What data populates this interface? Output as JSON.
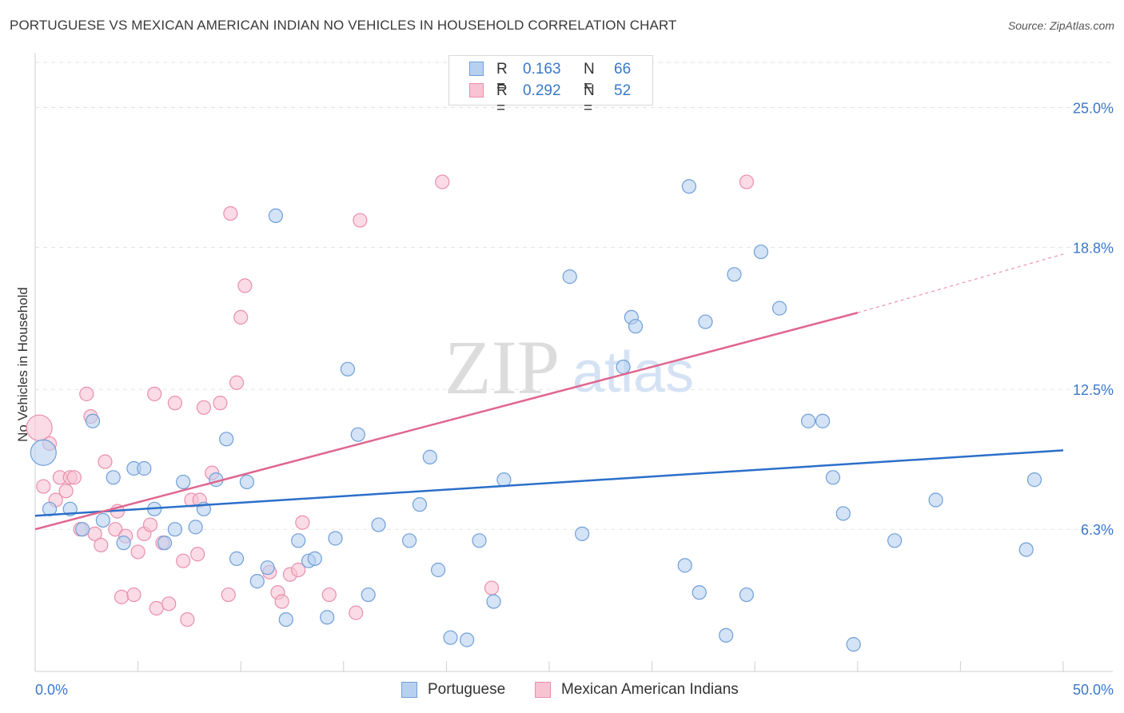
{
  "title": "PORTUGUESE VS MEXICAN AMERICAN INDIAN NO VEHICLES IN HOUSEHOLD CORRELATION CHART",
  "source": "Source: ZipAtlas.com",
  "watermark": {
    "zip": "ZIP",
    "atlas": "atlas"
  },
  "legend": [
    {
      "r_label": "R =",
      "r_value": "0.163",
      "n_label": "N =",
      "n_value": "66"
    },
    {
      "r_label": "R =",
      "r_value": "0.292",
      "n_label": "N =",
      "n_value": "52"
    }
  ],
  "chart_data": {
    "type": "scatter",
    "ylabel": "No Vehicles in Household",
    "xlim": [
      0,
      50
    ],
    "ylim": [
      0,
      27
    ],
    "x_tick_labels": [
      "0.0%",
      "50.0%"
    ],
    "y_ticks": [
      {
        "value": 6.3,
        "label": "6.3%"
      },
      {
        "value": 12.5,
        "label": "12.5%"
      },
      {
        "value": 18.8,
        "label": "18.8%"
      },
      {
        "value": 25.0,
        "label": "25.0%"
      }
    ],
    "grid": true,
    "legend_position": "top-center",
    "colors": {
      "portuguese_fill": "#b8d0f0",
      "portuguese_stroke": "#6f9fd8",
      "portuguese_line": "#2b6fc9",
      "mexican_fill": "#f8c3d3",
      "mexican_stroke": "#e98fab",
      "mexican_line": "#e0668e",
      "tick_label": "#3a78c9"
    },
    "series": [
      {
        "name": "Portuguese",
        "trend": {
          "x0": 0,
          "y0": 6.9,
          "x1": 50,
          "y1": 9.8
        },
        "points": [
          [
            0.4,
            9.7,
            "large"
          ],
          [
            0.7,
            7.2
          ],
          [
            1.7,
            7.2
          ],
          [
            2.3,
            6.3
          ],
          [
            2.8,
            11.1
          ],
          [
            3.3,
            6.7
          ],
          [
            3.8,
            8.6
          ],
          [
            4.3,
            5.7
          ],
          [
            4.8,
            9.0
          ],
          [
            5.3,
            9.0
          ],
          [
            5.8,
            7.2
          ],
          [
            6.3,
            5.7
          ],
          [
            6.8,
            6.3
          ],
          [
            7.2,
            8.4
          ],
          [
            7.8,
            6.4
          ],
          [
            8.2,
            7.2
          ],
          [
            8.8,
            8.5
          ],
          [
            9.3,
            10.3
          ],
          [
            9.8,
            5.0
          ],
          [
            10.3,
            8.4
          ],
          [
            10.8,
            4.0
          ],
          [
            11.3,
            4.6
          ],
          [
            11.7,
            20.2
          ],
          [
            12.2,
            2.3
          ],
          [
            12.8,
            5.8
          ],
          [
            13.3,
            4.9
          ],
          [
            13.6,
            5.0
          ],
          [
            14.2,
            2.4
          ],
          [
            14.6,
            5.9
          ],
          [
            15.2,
            13.4
          ],
          [
            15.7,
            10.5
          ],
          [
            16.2,
            3.4
          ],
          [
            16.7,
            6.5
          ],
          [
            18.2,
            5.8
          ],
          [
            18.7,
            7.4
          ],
          [
            19.2,
            9.5
          ],
          [
            19.6,
            4.5
          ],
          [
            20.2,
            1.5
          ],
          [
            21.0,
            1.4
          ],
          [
            21.6,
            5.8
          ],
          [
            22.3,
            3.1
          ],
          [
            22.8,
            8.5
          ],
          [
            26.0,
            17.5
          ],
          [
            26.6,
            6.1
          ],
          [
            28.6,
            13.5
          ],
          [
            29.0,
            15.7
          ],
          [
            29.2,
            15.3
          ],
          [
            31.6,
            4.7
          ],
          [
            31.8,
            21.5
          ],
          [
            32.3,
            3.5
          ],
          [
            32.6,
            15.5
          ],
          [
            33.6,
            1.6
          ],
          [
            34.0,
            17.6
          ],
          [
            34.6,
            3.4
          ],
          [
            35.3,
            18.6
          ],
          [
            36.2,
            16.1
          ],
          [
            37.6,
            11.1
          ],
          [
            38.3,
            11.1
          ],
          [
            38.8,
            8.6
          ],
          [
            39.3,
            7.0
          ],
          [
            39.8,
            1.2
          ],
          [
            41.8,
            5.8
          ],
          [
            43.8,
            7.6
          ],
          [
            48.2,
            5.4
          ],
          [
            48.6,
            8.5
          ],
          [
            37.0,
            4.0,
            "hidden"
          ]
        ]
      },
      {
        "name": "Mexican American Indians",
        "trend": {
          "x0": 0,
          "y0": 6.3,
          "x1": 40,
          "y1": 15.9,
          "dash_to": {
            "x": 50,
            "y": 18.5
          }
        },
        "points": [
          [
            0.2,
            10.8,
            "large"
          ],
          [
            0.4,
            8.2
          ],
          [
            0.7,
            10.1
          ],
          [
            1.0,
            7.6
          ],
          [
            1.2,
            8.6
          ],
          [
            1.5,
            8.0
          ],
          [
            1.7,
            8.6
          ],
          [
            1.9,
            8.6
          ],
          [
            2.2,
            6.3
          ],
          [
            2.5,
            12.3
          ],
          [
            2.7,
            11.3
          ],
          [
            2.9,
            6.1
          ],
          [
            3.2,
            5.6
          ],
          [
            3.4,
            9.3
          ],
          [
            3.9,
            6.3
          ],
          [
            4.0,
            7.1
          ],
          [
            4.2,
            3.3
          ],
          [
            4.4,
            6.0
          ],
          [
            4.8,
            3.4
          ],
          [
            5.0,
            5.3
          ],
          [
            5.3,
            6.1
          ],
          [
            5.6,
            6.5
          ],
          [
            5.8,
            12.3
          ],
          [
            5.9,
            2.8
          ],
          [
            6.2,
            5.7
          ],
          [
            6.5,
            3.0
          ],
          [
            6.8,
            11.9
          ],
          [
            7.2,
            4.9
          ],
          [
            7.4,
            2.3
          ],
          [
            7.6,
            7.6
          ],
          [
            7.9,
            5.2
          ],
          [
            8.0,
            7.6
          ],
          [
            8.2,
            11.7
          ],
          [
            8.6,
            8.8
          ],
          [
            9.0,
            11.9
          ],
          [
            9.4,
            3.4
          ],
          [
            9.8,
            12.8
          ],
          [
            10.0,
            15.7
          ],
          [
            10.2,
            17.1
          ],
          [
            11.4,
            4.4
          ],
          [
            11.8,
            3.5
          ],
          [
            12.0,
            3.1
          ],
          [
            12.4,
            4.3
          ],
          [
            12.8,
            4.5
          ],
          [
            13.0,
            6.6
          ],
          [
            14.3,
            3.4
          ],
          [
            15.6,
            2.6
          ],
          [
            15.8,
            20.0
          ],
          [
            19.8,
            21.7
          ],
          [
            22.2,
            3.7
          ],
          [
            9.5,
            20.3
          ],
          [
            34.6,
            21.7
          ]
        ]
      }
    ]
  }
}
